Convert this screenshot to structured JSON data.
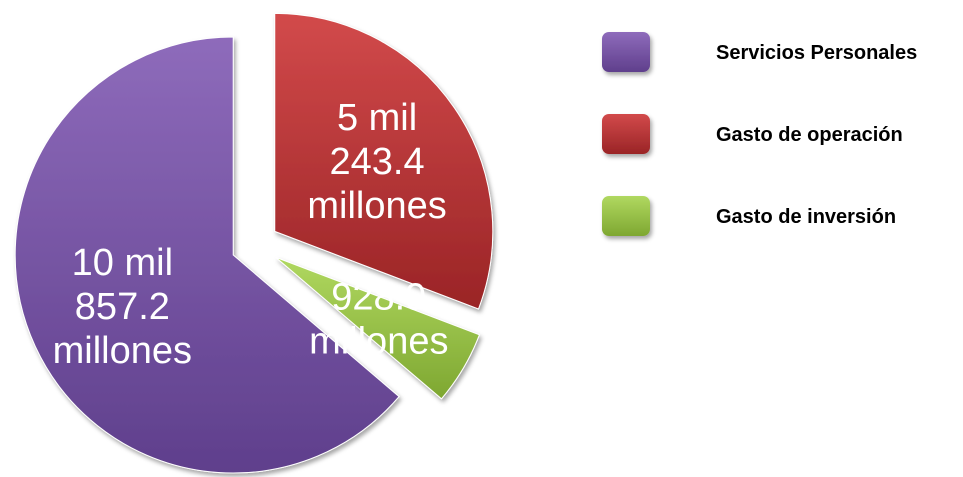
{
  "chart_data": {
    "type": "pie",
    "title": "",
    "exploded": true,
    "legend_position": "right",
    "slices": [
      {
        "name": "Servicios Personales",
        "value": 10857.2,
        "label_lines": [
          "10 mil",
          "857.2",
          "millones"
        ],
        "color": "#7E5BA8"
      },
      {
        "name": "Gasto de operación",
        "value": 5243.4,
        "label_lines": [
          "5 mil",
          "243.4",
          "millones"
        ],
        "color": "#C0393B"
      },
      {
        "name": "Gasto de inversión",
        "value": 928.9,
        "label_lines": [
          "928.9",
          "millones"
        ],
        "color": "#9CC744"
      }
    ]
  }
}
